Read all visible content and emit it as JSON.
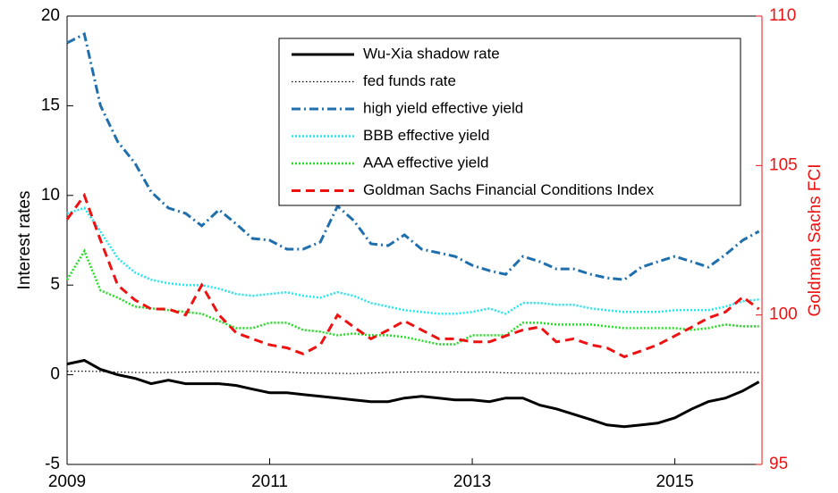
{
  "chart_data": {
    "type": "line",
    "x": [
      2009,
      2009.17,
      2009.33,
      2009.5,
      2009.67,
      2009.83,
      2010,
      2010.17,
      2010.33,
      2010.5,
      2010.67,
      2010.83,
      2011,
      2011.17,
      2011.33,
      2011.5,
      2011.67,
      2011.83,
      2012,
      2012.17,
      2012.33,
      2012.5,
      2012.67,
      2012.83,
      2013,
      2013.17,
      2013.33,
      2013.5,
      2013.67,
      2013.83,
      2014,
      2014.17,
      2014.33,
      2014.5,
      2014.67,
      2014.83,
      2015,
      2015.17,
      2015.33,
      2015.5,
      2015.67,
      2015.83
    ],
    "xlim": [
      2009,
      2015.86
    ],
    "xticks": [
      2009,
      2011,
      2013,
      2015
    ],
    "ylim": [
      -5,
      20
    ],
    "yticks": [
      -5,
      0,
      5,
      10,
      15,
      20
    ],
    "y2lim": [
      95,
      110
    ],
    "y2ticks": [
      95,
      100,
      105,
      110
    ],
    "ylabel": "Interest rates",
    "y2label": "Goldman Sachs FCI",
    "legend": "upper right",
    "grid": false,
    "series": [
      {
        "name": "Wu-Xia shadow rate",
        "color": "#000000",
        "style": "solid",
        "values": [
          0.6,
          0.8,
          0.3,
          0.0,
          -0.2,
          -0.5,
          -0.3,
          -0.5,
          -0.5,
          -0.5,
          -0.6,
          -0.8,
          -1.0,
          -1.0,
          -1.1,
          -1.2,
          -1.3,
          -1.4,
          -1.5,
          -1.5,
          -1.3,
          -1.2,
          -1.3,
          -1.4,
          -1.4,
          -1.5,
          -1.3,
          -1.3,
          -1.7,
          -1.9,
          -2.2,
          -2.5,
          -2.8,
          -2.9,
          -2.8,
          -2.7,
          -2.4,
          -1.9,
          -1.5,
          -1.3,
          -0.9,
          -0.4
        ]
      },
      {
        "name": "fed funds rate",
        "color": "#000000",
        "style": "dotted-thin",
        "values": [
          0.2,
          0.2,
          0.18,
          0.15,
          0.13,
          0.12,
          0.13,
          0.15,
          0.18,
          0.18,
          0.19,
          0.19,
          0.17,
          0.15,
          0.1,
          0.09,
          0.08,
          0.07,
          0.1,
          0.13,
          0.15,
          0.16,
          0.14,
          0.16,
          0.14,
          0.15,
          0.11,
          0.09,
          0.08,
          0.09,
          0.07,
          0.09,
          0.09,
          0.09,
          0.09,
          0.1,
          0.11,
          0.11,
          0.13,
          0.13,
          0.14,
          0.12
        ]
      },
      {
        "name": "high yield effective yield",
        "color": "#1f6fad",
        "style": "dashdot",
        "values": [
          18.5,
          19,
          15,
          13,
          11.8,
          10.2,
          9.3,
          9.0,
          8.3,
          9.2,
          8.4,
          7.6,
          7.5,
          7.0,
          7.0,
          7.4,
          9.4,
          8.6,
          7.3,
          7.2,
          7.8,
          7.0,
          6.8,
          6.6,
          6.1,
          5.8,
          5.6,
          6.6,
          6.3,
          5.9,
          5.9,
          5.6,
          5.4,
          5.3,
          6.0,
          6.3,
          6.6,
          6.3,
          6.0,
          6.7,
          7.5,
          8.0
        ]
      },
      {
        "name": "BBB effective yield",
        "color": "#22e5f0",
        "style": "dotted",
        "values": [
          9.0,
          9.3,
          8.0,
          6.5,
          5.7,
          5.3,
          5.1,
          5.0,
          5.0,
          4.8,
          4.5,
          4.4,
          4.5,
          4.6,
          4.4,
          4.3,
          4.6,
          4.4,
          4.0,
          3.8,
          3.6,
          3.5,
          3.4,
          3.4,
          3.5,
          3.7,
          3.4,
          4.0,
          4.0,
          3.9,
          3.9,
          3.7,
          3.6,
          3.5,
          3.5,
          3.5,
          3.6,
          3.6,
          3.6,
          3.8,
          4.1,
          4.2
        ]
      },
      {
        "name": "AAA effective yield",
        "color": "#22dd22",
        "style": "dotted",
        "values": [
          5.3,
          6.9,
          4.7,
          4.3,
          3.8,
          3.7,
          3.6,
          3.5,
          3.4,
          3.0,
          2.6,
          2.6,
          2.9,
          2.9,
          2.5,
          2.4,
          2.2,
          2.3,
          2.2,
          2.2,
          2.1,
          1.9,
          1.7,
          1.7,
          2.2,
          2.2,
          2.2,
          2.9,
          2.9,
          2.8,
          2.8,
          2.8,
          2.7,
          2.6,
          2.6,
          2.6,
          2.6,
          2.5,
          2.6,
          2.8,
          2.7,
          2.7
        ]
      },
      {
        "name": "Goldman Sachs Financial Conditions Index",
        "color": "#ee1111",
        "style": "dashed",
        "axis": "y2",
        "values": [
          103.2,
          104,
          102.5,
          101,
          100.5,
          100.2,
          100.2,
          100,
          101,
          100,
          99.4,
          99.2,
          99,
          98.9,
          98.7,
          99.0,
          100,
          99.6,
          99.2,
          99.5,
          99.8,
          99.5,
          99.2,
          99.2,
          99.1,
          99.1,
          99.3,
          99.5,
          99.6,
          99.1,
          99.2,
          99.0,
          98.9,
          98.6,
          98.8,
          99.0,
          99.3,
          99.6,
          99.9,
          100.1,
          100.6,
          100.2
        ]
      }
    ]
  }
}
